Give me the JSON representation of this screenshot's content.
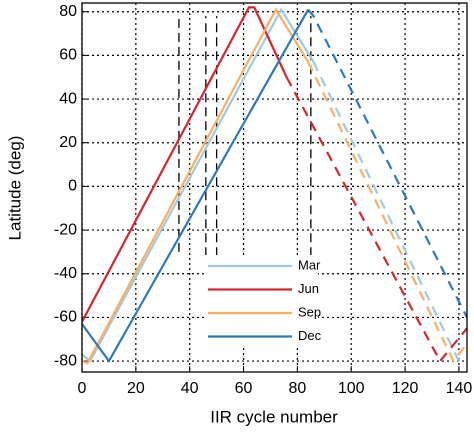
{
  "chart_data": {
    "type": "line",
    "xlabel": "IIR cycle number",
    "ylabel": "Latitude (deg)",
    "xlim": [
      0,
      143
    ],
    "ylim": [
      -85,
      84
    ],
    "xticks": [
      0,
      20,
      40,
      60,
      80,
      100,
      120,
      140
    ],
    "yticks": [
      -80,
      -60,
      -40,
      -20,
      0,
      20,
      40,
      60,
      80
    ],
    "grid": true,
    "legend": "lower center",
    "series": [
      {
        "name": "Mar",
        "color": "#9ecae1",
        "x": [
          0,
          3,
          74,
          86,
          140,
          143
        ],
        "values": [
          -77,
          -80,
          81,
          57,
          null,
          null
        ],
        "dashed_values": [
          null,
          null,
          null,
          57,
          -80,
          -80
        ]
      },
      {
        "name": "Jun",
        "color": "#d7262b",
        "x": [
          0,
          62,
          64,
          76,
          133,
          143
        ],
        "values": [
          -62,
          82,
          82,
          50,
          null,
          null
        ],
        "dashed_values": [
          null,
          null,
          null,
          50,
          -80,
          -65
        ]
      },
      {
        "name": "Sep",
        "color": "#fdae61",
        "x": [
          0,
          2,
          72,
          84,
          138,
          143
        ],
        "values": [
          -80,
          -81,
          81,
          57,
          null,
          null
        ],
        "dashed_values": [
          null,
          null,
          null,
          57,
          -80,
          -72
        ]
      },
      {
        "name": "Dec",
        "color": "#2b7bb9",
        "x": [
          0,
          10,
          84,
          86,
          143
        ],
        "values": [
          -63,
          -80,
          81,
          null,
          null
        ],
        "dashed_values": [
          null,
          null,
          81,
          78,
          -60
        ]
      }
    ],
    "markers": [
      {
        "x": 36,
        "ylim": [
          -30,
          78
        ]
      },
      {
        "x": 46,
        "ylim": [
          -32,
          78
        ]
      },
      {
        "x": 50,
        "ylim": [
          -32,
          78
        ]
      },
      {
        "x": 85,
        "ylim": [
          -32,
          78
        ]
      }
    ]
  }
}
